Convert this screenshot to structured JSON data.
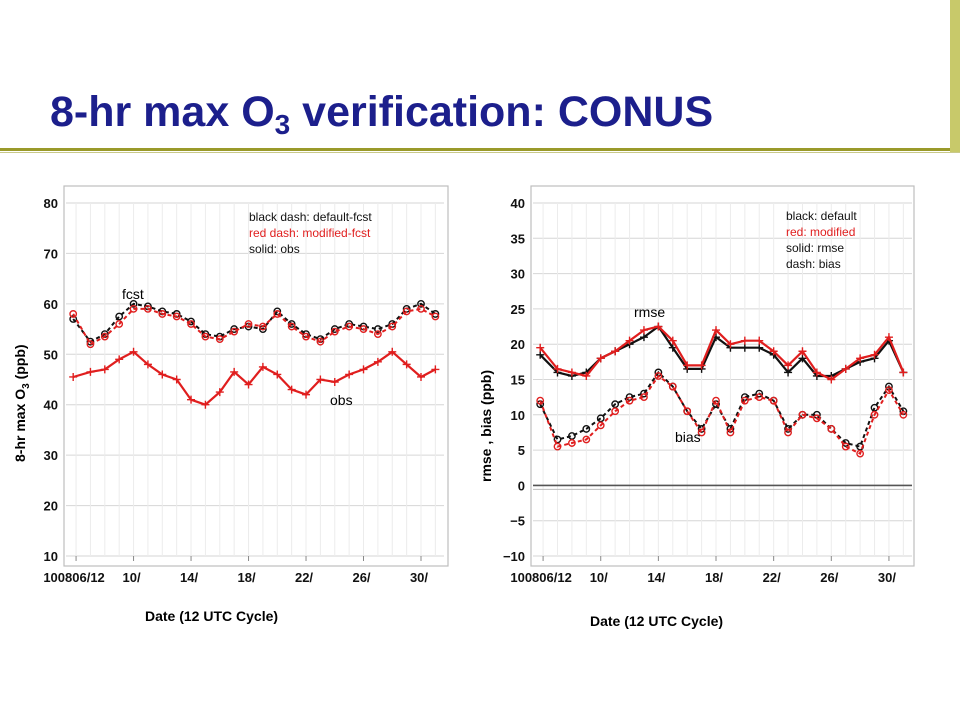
{
  "slide": {
    "title_main": "8-hr max O",
    "title_sub": "3",
    "title_rest": " verification: CONUS"
  },
  "colors": {
    "title": "#1c1f8c",
    "black_series": "#111111",
    "red_series": "#e01e1e",
    "rule": "#9a9a2a"
  },
  "chart_data": [
    {
      "type": "line",
      "ylabel_main": "8-hr max O",
      "ylabel_sub": "3",
      "ylabel_rest": " (ppb)",
      "xlabel": "Date (12 UTC Cycle)",
      "ylim": [
        10,
        80
      ],
      "yticks": [
        "10",
        "20",
        "30",
        "40",
        "50",
        "60",
        "70",
        "80"
      ],
      "tick_labels": [
        "100806/12",
        "10/",
        "14/",
        "18/",
        "22/",
        "26/",
        "30/"
      ],
      "tick_days": [
        6,
        10,
        14,
        18,
        22,
        26,
        30
      ],
      "x_days": [
        5.8,
        7,
        8,
        9,
        10,
        11,
        12,
        13,
        14,
        15,
        16,
        17,
        18,
        19,
        20,
        21,
        22,
        23,
        24,
        25,
        26,
        27,
        28,
        29,
        30,
        31
      ],
      "legend": [
        "black dash: default-fcst",
        "red dash:  modified-fcst",
        "solid: obs"
      ],
      "annotations": [
        "fcst",
        "obs"
      ],
      "series": [
        {
          "style": "black dash",
          "values": [
            57,
            52.5,
            54,
            57.5,
            60,
            59.5,
            58.5,
            58,
            56.5,
            54,
            53.5,
            55,
            55.5,
            55,
            58.5,
            56,
            54,
            53,
            55,
            56,
            55.5,
            55,
            56,
            59,
            60,
            58
          ]
        },
        {
          "style": "red dash",
          "values": [
            58,
            52,
            53.5,
            56,
            59,
            59,
            58,
            57.5,
            56,
            53.5,
            53,
            54.5,
            56,
            55.5,
            58,
            55.5,
            53.5,
            52.5,
            54.5,
            55.5,
            55,
            54,
            55.5,
            58.5,
            59,
            57.5
          ]
        },
        {
          "style": "red solid",
          "values": [
            45.5,
            46.5,
            47,
            49,
            50.5,
            48,
            46,
            45,
            41,
            40,
            42.5,
            46.5,
            44,
            47.5,
            46,
            43,
            42,
            45,
            44.5,
            46,
            47,
            48.5,
            50.5,
            48,
            45.5,
            47
          ]
        }
      ]
    },
    {
      "type": "line",
      "ylabel": "rmse , bias  (ppb)",
      "xlabel": "Date (12 UTC Cycle)",
      "ylim": [
        -10,
        40
      ],
      "yticks": [
        "−10",
        "−5",
        "0",
        "5",
        "10",
        "15",
        "20",
        "25",
        "30",
        "35",
        "40"
      ],
      "tick_labels": [
        "100806/12",
        "10/",
        "14/",
        "18/",
        "22/",
        "26/",
        "30/"
      ],
      "tick_days": [
        6,
        10,
        14,
        18,
        22,
        26,
        30
      ],
      "x_days": [
        5.8,
        7,
        8,
        9,
        10,
        11,
        12,
        13,
        14,
        15,
        16,
        17,
        18,
        19,
        20,
        21,
        22,
        23,
        24,
        25,
        26,
        27,
        28,
        29,
        30,
        31
      ],
      "legend": [
        "black: default",
        "red: modified",
        "solid: rmse",
        "dash: bias"
      ],
      "annotations": [
        "rmse",
        "bias"
      ],
      "series": [
        {
          "style": "black solid rmse",
          "values": [
            18.5,
            16,
            15.5,
            16,
            18,
            19,
            20,
            21,
            22.5,
            19.5,
            16.5,
            16.5,
            21,
            19.5,
            19.5,
            19.5,
            18.5,
            16,
            18,
            15.5,
            15.5,
            16.5,
            17.5,
            18,
            20.5,
            16
          ]
        },
        {
          "style": "red solid rmse",
          "values": [
            19.5,
            16.5,
            16,
            15.5,
            18,
            19,
            20.5,
            22,
            22.5,
            20.5,
            17,
            17,
            22,
            20,
            20.5,
            20.5,
            19,
            17,
            19,
            16,
            15,
            16.5,
            18,
            18.5,
            21,
            16
          ]
        },
        {
          "style": "black dash bias",
          "values": [
            11.5,
            6.5,
            7,
            8,
            9.5,
            11.5,
            12.5,
            13,
            16,
            14,
            10.5,
            8,
            11.5,
            8,
            12.5,
            13,
            12,
            8,
            10,
            10,
            8,
            6,
            5.5,
            11,
            14,
            10.5
          ]
        },
        {
          "style": "red dash bias",
          "values": [
            12,
            5.5,
            6,
            6.5,
            8.5,
            10.5,
            12,
            12.5,
            15.5,
            14,
            10.5,
            7.5,
            12,
            7.5,
            12,
            12.5,
            12,
            7.5,
            10,
            9.5,
            8,
            5.5,
            4.5,
            10,
            13.5,
            10
          ]
        }
      ]
    }
  ]
}
